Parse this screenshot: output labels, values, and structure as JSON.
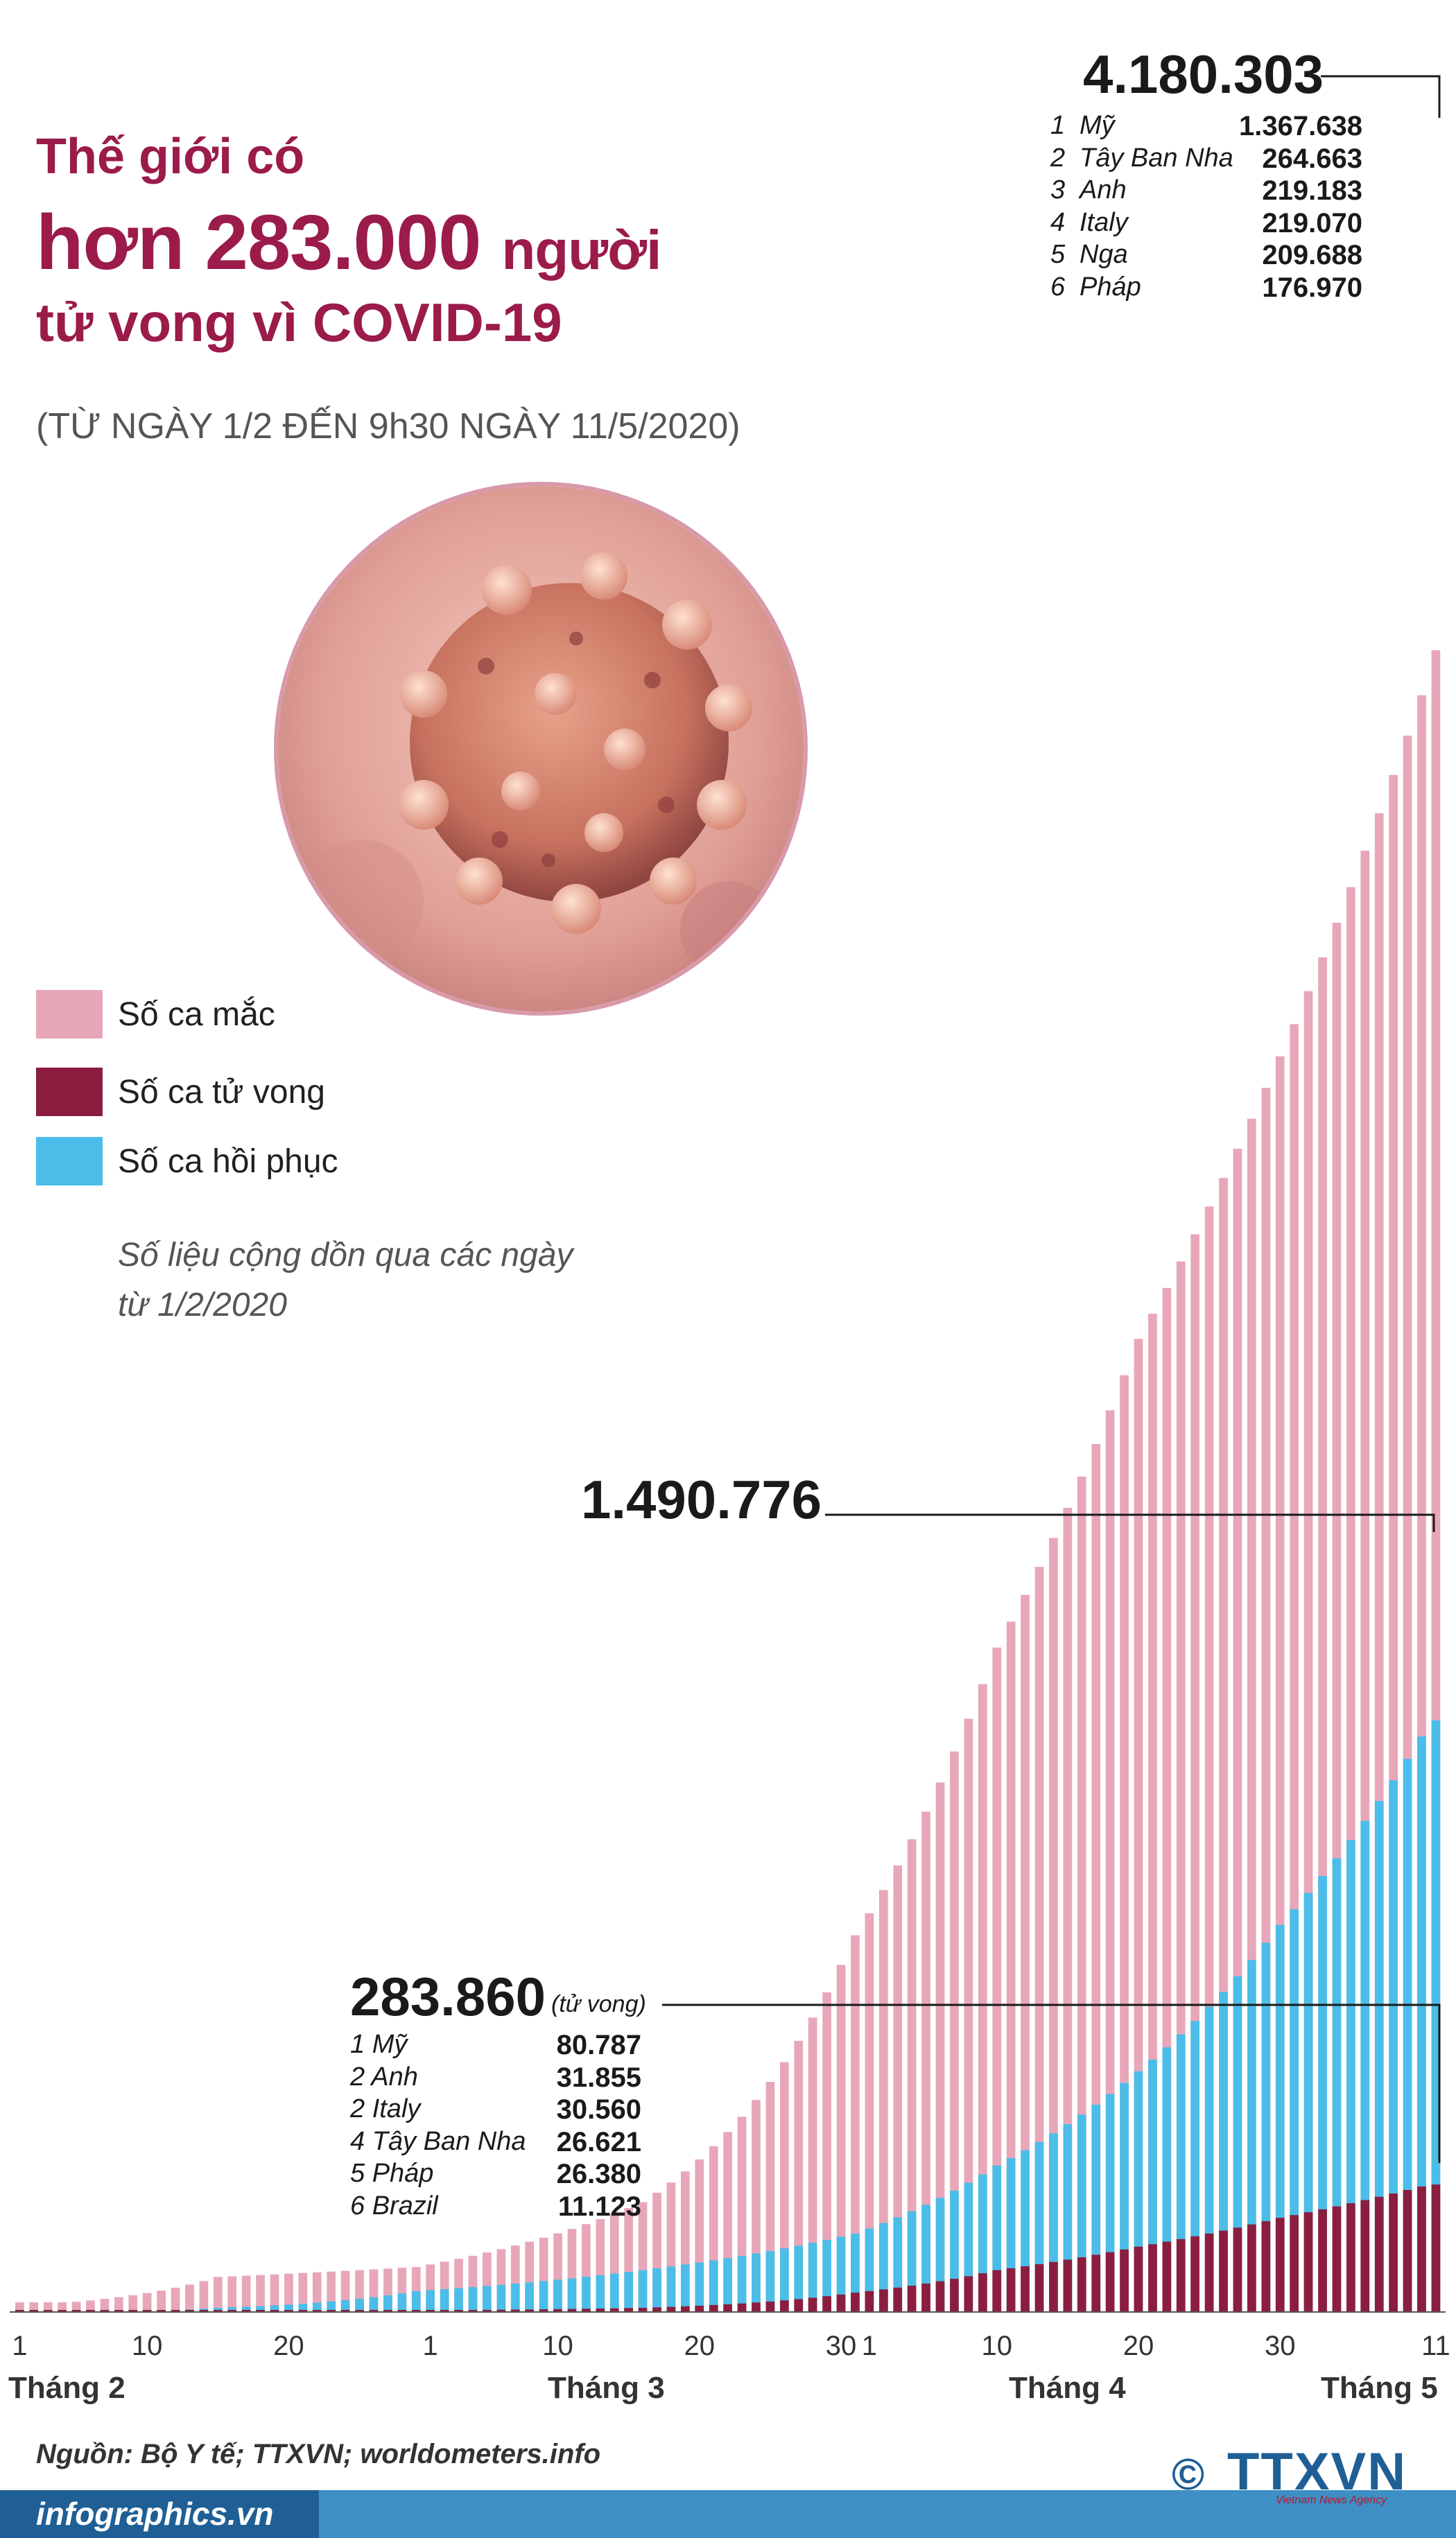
{
  "title": {
    "line1": "Thế giới có",
    "line2_big": "hơn 283.000",
    "line2_small": "người",
    "line3": "tử vong vì COVID-19"
  },
  "subtitle": "(TỪ NGÀY 1/2 ĐẾN 9h30 NGÀY 11/5/2020)",
  "legend": [
    {
      "label": "Số ca mắc",
      "color": "#e8a7b8"
    },
    {
      "label": "Số ca tử vong",
      "color": "#8b1e3f"
    },
    {
      "label": "Số ca hồi phục",
      "color": "#4bbde8"
    }
  ],
  "note_lines": [
    "Số liệu cộng dồn qua các ngày",
    "từ 1/2/2020"
  ],
  "annotations": {
    "cases": {
      "total": "4.180.303",
      "list": [
        {
          "rank": "1",
          "country": "Mỹ",
          "value": "1.367.638"
        },
        {
          "rank": "2",
          "country": "Tây Ban Nha",
          "value": "264.663"
        },
        {
          "rank": "3",
          "country": "Anh",
          "value": "219.183"
        },
        {
          "rank": "4",
          "country": "Italy",
          "value": "219.070"
        },
        {
          "rank": "5",
          "country": "Nga",
          "value": "209.688"
        },
        {
          "rank": "6",
          "country": "Pháp",
          "value": "176.970"
        }
      ]
    },
    "recovered": {
      "total": "1.490.776"
    },
    "deaths": {
      "total": "283.860",
      "tag": "(tử vong)",
      "list": [
        {
          "label": "1 Mỹ",
          "value": "80.787"
        },
        {
          "label": "2 Anh",
          "value": "31.855"
        },
        {
          "label": "2 Italy",
          "value": "30.560"
        },
        {
          "label": "4 Tây Ban Nha",
          "value": "26.621"
        },
        {
          "label": "5 Pháp",
          "value": "26.380"
        },
        {
          "label": "6 Brazil",
          "value": "11.123"
        }
      ]
    }
  },
  "chart_data": {
    "type": "bar",
    "stacked_overlay": true,
    "x_range": [
      "1/2/2020",
      "11/5/2020"
    ],
    "x_tick_labels": [
      "1",
      "10",
      "20",
      "1",
      "10",
      "20",
      "30",
      "1",
      "10",
      "20",
      "30",
      "11"
    ],
    "month_labels": [
      "Tháng 2",
      "Tháng 3",
      "Tháng 4",
      "Tháng 5"
    ],
    "days_per_month": [
      29,
      31,
      30,
      11
    ],
    "series": [
      {
        "name": "Số ca mắc",
        "color": "#e8a7b8",
        "anchors": [
          [
            1,
            12000
          ],
          [
            15,
            67000
          ],
          [
            29,
            86000
          ],
          [
            45,
            210000
          ],
          [
            60,
            720000
          ],
          [
            70,
            1270000
          ],
          [
            80,
            1860000
          ],
          [
            90,
            2400000
          ],
          [
            100,
            3090000
          ],
          [
            111,
            4180303
          ]
        ]
      },
      {
        "name": "Số ca hồi phục",
        "color": "#4bbde8",
        "anchors": [
          [
            1,
            300
          ],
          [
            15,
            8000
          ],
          [
            29,
            40000
          ],
          [
            45,
            80000
          ],
          [
            60,
            150000
          ],
          [
            70,
            280000
          ],
          [
            80,
            460000
          ],
          [
            90,
            740000
          ],
          [
            100,
            1100000
          ],
          [
            111,
            1490776
          ]
        ]
      },
      {
        "name": "Số ca tử vong",
        "color": "#8b1e3f",
        "anchors": [
          [
            1,
            260
          ],
          [
            15,
            1500
          ],
          [
            29,
            3000
          ],
          [
            45,
            8000
          ],
          [
            60,
            37000
          ],
          [
            70,
            80000
          ],
          [
            80,
            125000
          ],
          [
            90,
            180000
          ],
          [
            100,
            240000
          ],
          [
            111,
            283860
          ]
        ]
      }
    ],
    "ylim": [
      0,
      4300000
    ]
  }
}
